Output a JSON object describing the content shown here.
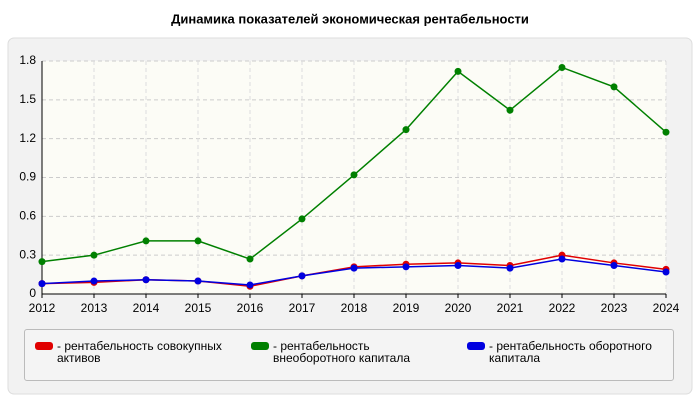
{
  "chart_data": {
    "type": "line",
    "title": "Динамика показателей экономическая рентабельности",
    "categories": [
      "2012",
      "2013",
      "2014",
      "2015",
      "2016",
      "2017",
      "2018",
      "2019",
      "2020",
      "2021",
      "2022",
      "2023",
      "2024"
    ],
    "series": [
      {
        "name": "- рентабельность совокупных активов",
        "color": "#e00000",
        "values": [
          0.08,
          0.09,
          0.11,
          0.1,
          0.06,
          0.14,
          0.21,
          0.23,
          0.24,
          0.22,
          0.3,
          0.24,
          0.19
        ]
      },
      {
        "name": "- рентабельность внеоборотного капитала",
        "color": "#008000",
        "values": [
          0.25,
          0.3,
          0.41,
          0.41,
          0.27,
          0.58,
          0.92,
          1.27,
          1.72,
          1.42,
          1.75,
          1.6,
          1.25
        ]
      },
      {
        "name": "- рентабельность оборотного капитала",
        "color": "#0000e0",
        "values": [
          0.08,
          0.1,
          0.11,
          0.1,
          0.07,
          0.14,
          0.2,
          0.21,
          0.22,
          0.2,
          0.27,
          0.22,
          0.17
        ]
      }
    ],
    "ylim": [
      0,
      1.8
    ],
    "yticks": [
      0,
      0.3,
      0.6,
      0.9,
      1.2,
      1.5,
      1.8
    ],
    "grid": true
  }
}
